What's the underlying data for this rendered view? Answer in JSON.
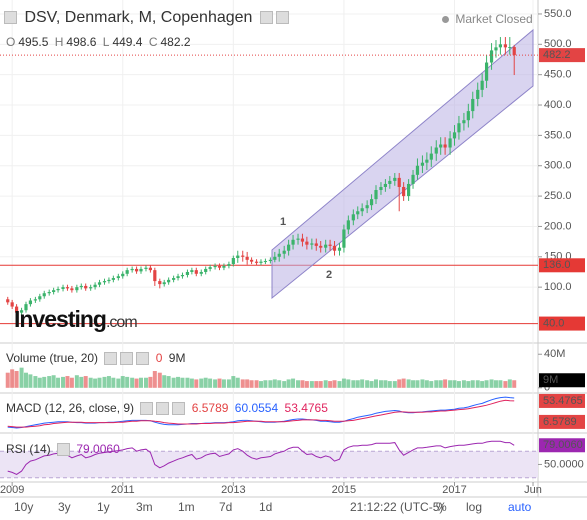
{
  "header": {
    "title": "DSV, Denmark, M, Copenhagen",
    "status": "Market Closed"
  },
  "chart_data": [
    {
      "type": "candlestick",
      "x": [
        2008.92,
        2009.0,
        2009.08,
        2009.17,
        2009.25,
        2009.33,
        2009.42,
        2009.5,
        2009.58,
        2009.67,
        2009.75,
        2009.83,
        2009.92,
        2010.0,
        2010.08,
        2010.17,
        2010.25,
        2010.33,
        2010.42,
        2010.5,
        2010.58,
        2010.67,
        2010.75,
        2010.83,
        2010.92,
        2011.0,
        2011.08,
        2011.17,
        2011.25,
        2011.33,
        2011.42,
        2011.5,
        2011.58,
        2011.67,
        2011.75,
        2011.83,
        2011.92,
        2012.0,
        2012.08,
        2012.17,
        2012.25,
        2012.33,
        2012.42,
        2012.5,
        2012.58,
        2012.67,
        2012.75,
        2012.83,
        2012.92,
        2013.0,
        2013.08,
        2013.17,
        2013.25,
        2013.33,
        2013.42,
        2013.5,
        2013.58,
        2013.67,
        2013.75,
        2013.83,
        2013.92,
        2014.0,
        2014.08,
        2014.17,
        2014.25,
        2014.33,
        2014.42,
        2014.5,
        2014.58,
        2014.67,
        2014.75,
        2014.83,
        2014.92,
        2015.0,
        2015.08,
        2015.17,
        2015.25,
        2015.33,
        2015.42,
        2015.5,
        2015.58,
        2015.67,
        2015.75,
        2015.83,
        2015.92,
        2016.0,
        2016.08,
        2016.17,
        2016.25,
        2016.33,
        2016.42,
        2016.5,
        2016.58,
        2016.67,
        2016.75,
        2016.83,
        2016.92,
        2017.0,
        2017.08,
        2017.17,
        2017.25,
        2017.33,
        2017.42,
        2017.5,
        2017.58,
        2017.67,
        2017.75,
        2017.83,
        2017.92,
        2018.0,
        2018.08
      ],
      "open": [
        80,
        75,
        68,
        58,
        62,
        72,
        78,
        80,
        85,
        90,
        92,
        95,
        97,
        100,
        98,
        95,
        100,
        102,
        98,
        100,
        104,
        108,
        110,
        112,
        115,
        118,
        122,
        128,
        130,
        126,
        130,
        132,
        128,
        110,
        105,
        108,
        112,
        115,
        118,
        120,
        125,
        128,
        122,
        125,
        130,
        133,
        135,
        132,
        135,
        138,
        148,
        152,
        150,
        145,
        142,
        140,
        142,
        143,
        145,
        150,
        155,
        160,
        170,
        178,
        180,
        175,
        170,
        172,
        168,
        165,
        170,
        168,
        160,
        165,
        195,
        210,
        220,
        225,
        230,
        235,
        245,
        260,
        265,
        270,
        275,
        280,
        265,
        250,
        270,
        285,
        300,
        305,
        310,
        320,
        330,
        335,
        330,
        345,
        355,
        370,
        375,
        390,
        410,
        425,
        440,
        470,
        490,
        495,
        500,
        495,
        495.5
      ],
      "high": [
        84,
        79,
        72,
        66,
        76,
        82,
        84,
        89,
        94,
        96,
        99,
        101,
        104,
        104,
        102,
        104,
        106,
        106,
        104,
        108,
        112,
        114,
        116,
        119,
        122,
        126,
        132,
        134,
        134,
        134,
        136,
        136,
        132,
        114,
        112,
        116,
        119,
        122,
        124,
        129,
        132,
        132,
        129,
        134,
        137,
        139,
        139,
        139,
        142,
        152,
        160,
        160,
        158,
        149,
        146,
        146,
        147,
        149,
        158,
        163,
        168,
        178,
        186,
        188,
        188,
        183,
        180,
        180,
        176,
        178,
        178,
        176,
        173,
        203,
        218,
        228,
        233,
        238,
        243,
        253,
        268,
        273,
        278,
        283,
        288,
        288,
        273,
        278,
        293,
        312,
        317,
        322,
        332,
        342,
        347,
        347,
        357,
        367,
        382,
        387,
        402,
        422,
        437,
        452,
        482,
        502,
        507,
        512,
        512,
        512,
        498.6
      ],
      "low": [
        71,
        64,
        54,
        54,
        58,
        68,
        74,
        76,
        81,
        86,
        88,
        91,
        93,
        94,
        91,
        91,
        96,
        94,
        94,
        96,
        100,
        104,
        106,
        108,
        111,
        114,
        118,
        124,
        122,
        122,
        126,
        124,
        102,
        98,
        101,
        104,
        108,
        111,
        114,
        116,
        121,
        118,
        118,
        121,
        126,
        129,
        128,
        128,
        131,
        134,
        140,
        142,
        137,
        138,
        136,
        136,
        138,
        139,
        141,
        142,
        147,
        152,
        162,
        170,
        167,
        162,
        162,
        160,
        157,
        157,
        160,
        152,
        152,
        157,
        187,
        202,
        212,
        217,
        222,
        227,
        237,
        252,
        257,
        262,
        267,
        225,
        242,
        242,
        262,
        277,
        288,
        293,
        298,
        308,
        318,
        318,
        318,
        333,
        343,
        358,
        363,
        378,
        398,
        413,
        428,
        458,
        478,
        483,
        483,
        483,
        449.4
      ],
      "close": [
        75,
        68,
        58,
        62,
        72,
        78,
        80,
        85,
        90,
        92,
        95,
        97,
        100,
        98,
        95,
        100,
        102,
        98,
        100,
        104,
        108,
        110,
        112,
        115,
        118,
        122,
        128,
        130,
        126,
        130,
        132,
        128,
        110,
        105,
        108,
        112,
        115,
        118,
        120,
        125,
        128,
        122,
        125,
        130,
        133,
        135,
        132,
        135,
        138,
        148,
        152,
        150,
        145,
        142,
        140,
        142,
        143,
        145,
        150,
        155,
        160,
        170,
        178,
        180,
        175,
        170,
        172,
        168,
        165,
        170,
        168,
        160,
        165,
        195,
        210,
        220,
        225,
        230,
        235,
        245,
        260,
        265,
        270,
        275,
        280,
        265,
        250,
        270,
        285,
        300,
        305,
        310,
        320,
        330,
        335,
        330,
        345,
        355,
        370,
        375,
        390,
        410,
        425,
        440,
        470,
        490,
        495,
        500,
        495,
        495.5,
        482.2
      ],
      "up_color": "#3bb36b",
      "down_color": "#e34444",
      "ohlc_labels": [
        "O",
        "H",
        "L",
        "C"
      ],
      "xlim": [
        2008.78,
        2018.51
      ],
      "xticks": [
        {
          "value": 2009,
          "label": "2009"
        },
        {
          "value": 2011,
          "label": "2011"
        },
        {
          "value": 2013,
          "label": "2013"
        },
        {
          "value": 2015,
          "label": "2015"
        },
        {
          "value": 2017,
          "label": "2017"
        },
        {
          "value": 2018.42,
          "label": "Jun"
        }
      ],
      "ylim": [
        8,
        573
      ],
      "yticks": [
        {
          "value": 100,
          "label": "100.0"
        },
        {
          "value": 150,
          "label": "150.0"
        },
        {
          "value": 200,
          "label": "200.0"
        },
        {
          "value": 250,
          "label": "250.0"
        },
        {
          "value": 300,
          "label": "300.0"
        },
        {
          "value": 350,
          "label": "350.0"
        },
        {
          "value": 400,
          "label": "400.0"
        },
        {
          "value": 450,
          "label": "450.0"
        },
        {
          "value": 500,
          "label": "500.0"
        },
        {
          "value": 550,
          "label": "550.0"
        }
      ],
      "grid": true,
      "hlines": [
        {
          "value": 136,
          "label": "136.0",
          "color": "#e53935"
        },
        {
          "value": 40,
          "label": "40.0",
          "color": "#e53935"
        }
      ],
      "annotations": [
        {
          "text": "1",
          "color": "#f5a31a"
        },
        {
          "text": "2",
          "color": "#f5a31a"
        }
      ],
      "watermark": [
        "Investing",
        ".com"
      ]
    },
    {
      "type": "bar",
      "title": "Volume (true, 20)",
      "legend_text": [
        "0",
        "9M"
      ],
      "values": [
        18,
        22,
        20,
        24,
        18,
        16,
        14,
        12,
        13,
        14,
        15,
        12,
        13,
        14,
        12,
        15,
        13,
        14,
        12,
        11,
        12,
        13,
        14,
        12,
        11,
        14,
        13,
        12,
        11,
        12,
        12,
        13,
        20,
        18,
        15,
        14,
        12,
        13,
        12,
        12,
        11,
        10,
        11,
        12,
        11,
        10,
        11,
        10,
        10,
        14,
        12,
        10,
        10,
        9,
        9,
        8,
        9,
        9,
        10,
        9,
        8,
        10,
        11,
        9,
        9,
        8,
        8,
        8,
        8,
        9,
        8,
        9,
        8,
        11,
        10,
        9,
        9,
        10,
        9,
        8,
        10,
        9,
        9,
        8,
        8,
        10,
        11,
        10,
        9,
        9,
        10,
        9,
        8,
        9,
        9,
        10,
        9,
        9,
        8,
        9,
        8,
        9,
        9,
        8,
        9,
        10,
        9,
        9,
        8,
        10,
        9
      ],
      "ylim": [
        -5,
        51
      ],
      "yticks": [
        {
          "value": 40,
          "label": "40M"
        },
        0
      ]
    },
    {
      "type": "line",
      "title": "MACD (12, 26, close, 9)",
      "histogram_value": 6.5789,
      "ylim": [
        -16,
        69
      ],
      "series": [
        {
          "color": "#2962ff",
          "values": [
            -5,
            -6,
            -7,
            -6,
            -4,
            -2,
            0,
            2,
            4,
            5,
            6,
            7,
            7,
            7,
            6,
            5,
            5,
            4,
            4,
            4,
            5,
            5,
            6,
            6,
            7,
            8,
            9,
            10,
            10,
            10,
            10,
            9,
            6,
            3,
            1,
            0,
            0,
            0,
            1,
            2,
            3,
            3,
            3,
            4,
            4,
            5,
            5,
            5,
            6,
            7,
            9,
            10,
            10,
            9,
            8,
            7,
            6,
            6,
            6,
            7,
            8,
            10,
            12,
            13,
            13,
            12,
            11,
            10,
            8,
            8,
            7,
            6,
            6,
            8,
            11,
            14,
            17,
            19,
            21,
            23,
            26,
            28,
            30,
            31,
            32,
            31,
            28,
            27,
            27,
            28,
            29,
            30,
            31,
            32,
            33,
            33,
            34,
            35,
            37,
            38,
            40,
            43,
            46,
            48,
            52,
            56,
            59,
            61,
            62,
            61,
            60.0554
          ]
        },
        {
          "color": "#e0245e",
          "values": [
            -3,
            -4,
            -5,
            -5,
            -5,
            -4,
            -3,
            -2,
            0,
            1,
            3,
            4,
            5,
            6,
            6,
            6,
            6,
            5,
            5,
            5,
            5,
            5,
            5,
            5,
            6,
            6,
            7,
            8,
            8,
            9,
            9,
            9,
            8,
            7,
            5,
            4,
            3,
            2,
            2,
            2,
            2,
            2,
            3,
            3,
            3,
            4,
            4,
            4,
            5,
            5,
            6,
            7,
            8,
            8,
            8,
            8,
            7,
            7,
            7,
            7,
            7,
            8,
            9,
            10,
            11,
            11,
            11,
            11,
            10,
            10,
            9,
            8,
            8,
            8,
            9,
            10,
            12,
            14,
            16,
            18,
            20,
            22,
            24,
            26,
            28,
            29,
            29,
            28,
            28,
            28,
            28,
            29,
            29,
            30,
            31,
            31,
            32,
            33,
            34,
            35,
            36,
            38,
            40,
            42,
            44,
            47,
            50,
            53,
            55,
            54,
            53.4765
          ]
        }
      ]
    },
    {
      "type": "line",
      "title": "RSI (14)",
      "color": "#9c27b0",
      "value_label": "79.0060",
      "band": [
        30,
        70
      ],
      "values": [
        40,
        38,
        35,
        40,
        50,
        55,
        57,
        60,
        63,
        64,
        66,
        67,
        68,
        64,
        60,
        63,
        65,
        60,
        62,
        65,
        67,
        68,
        69,
        70,
        71,
        72,
        74,
        75,
        70,
        72,
        73,
        68,
        50,
        45,
        48,
        52,
        55,
        58,
        60,
        63,
        65,
        58,
        60,
        64,
        66,
        67,
        62,
        64,
        66,
        72,
        74,
        70,
        64,
        60,
        58,
        60,
        61,
        62,
        66,
        68,
        70,
        74,
        76,
        76,
        70,
        65,
        66,
        62,
        60,
        63,
        61,
        55,
        58,
        72,
        76,
        78,
        78,
        79,
        79,
        80,
        82,
        82,
        82,
        82,
        83,
        72,
        64,
        68,
        72,
        75,
        75,
        76,
        77,
        78,
        78,
        75,
        77,
        78,
        79,
        79,
        80,
        81,
        82,
        82,
        84,
        85,
        85,
        85,
        83,
        83,
        79.006
      ],
      "ylim": [
        25,
        93
      ],
      "yticks": [
        {
          "value": 50,
          "label": "50.0000"
        }
      ]
    }
  ],
  "toolbar": {
    "ranges": [
      "10y",
      "3y",
      "1y",
      "3m",
      "1m",
      "7d",
      "1d"
    ],
    "time": "21:12:22 (UTC-5)",
    "options": [
      "%",
      "log",
      "auto"
    ]
  }
}
